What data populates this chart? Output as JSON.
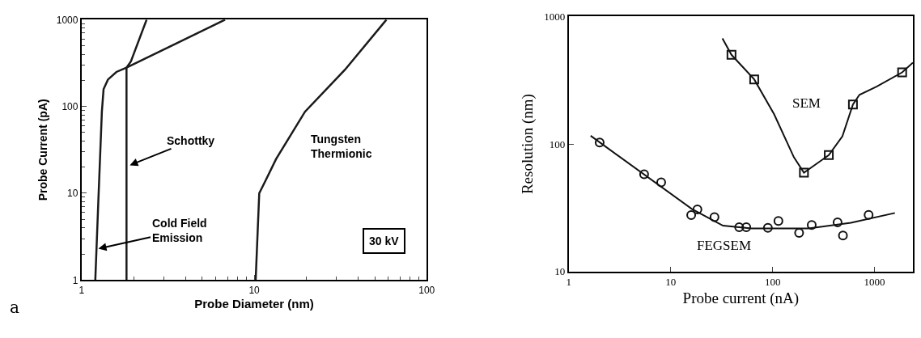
{
  "chart_data": [
    {
      "type": "line",
      "xlabel": "Probe Diameter (nm)",
      "ylabel": "Probe Current (pA)",
      "log": "xy",
      "xlim": [
        1,
        100
      ],
      "ylim": [
        1,
        1000
      ],
      "xticks": [
        1,
        10,
        100
      ],
      "yticks": [
        1,
        10,
        100,
        1000
      ],
      "line_style": "solid",
      "marker": "none",
      "series": [
        {
          "color": "#1a1a1a",
          "x": [
            1.2,
            1.25,
            1.31,
            1.34,
            1.42,
            1.59,
            1.82,
            3.41,
            6.78
          ],
          "values": [
            1,
            8.2,
            87,
            158,
            204,
            250,
            280,
            513,
            1000
          ]
        },
        {
          "color": "#1a1a1a",
          "x": [
            1.82,
            1.82,
            1.93,
            2.38
          ],
          "values": [
            1,
            280,
            330,
            1000
          ]
        },
        {
          "color": "#1a1a1a",
          "x": [
            10.2,
            10.7,
            11.6,
            13.4,
            19.7,
            33.6,
            58.4
          ],
          "values": [
            1,
            10,
            13.8,
            24.8,
            87,
            265,
            1000
          ]
        }
      ],
      "annotations": [
        {
          "text": "Schottky",
          "x": 1.9,
          "y": 21
        },
        {
          "text": "Cold Field\nEmission",
          "x": 1.25,
          "y": 2.3
        },
        "Tungsten\nThermionic",
        "30 kV",
        "a"
      ]
    },
    {
      "type": "scatter",
      "xlabel": "Probe current (nA)",
      "ylabel": "Resolution (nm)",
      "log": "xy",
      "xlim": [
        1,
        2380
      ],
      "ylim": [
        10,
        1000
      ],
      "xticks": [
        1,
        10,
        100,
        1000
      ],
      "yticks": [
        10,
        100,
        1000
      ],
      "series": [
        {
          "type": "line",
          "color": "#111111",
          "x": [
            32.2,
            39.5,
            66,
            103.5,
            162,
            203,
            356,
            484,
            614,
            711,
            1047,
            1866,
            2380
          ],
          "values": [
            673,
            500,
            321,
            171,
            78.6,
            59.6,
            81.8,
            115,
            204,
            243,
            282,
            364,
            434
          ]
        },
        {
          "type": "scatter",
          "marker": "square",
          "color": "#111111",
          "x": [
            39.5,
            66,
            203,
            356,
            614,
            1866
          ],
          "values": [
            500,
            321,
            59.6,
            81.8,
            204,
            364
          ]
        },
        {
          "type": "line",
          "color": "#111111",
          "x": [
            1.64,
            16.1,
            32.6,
            61.9,
            224,
            587,
            1585
          ],
          "values": [
            116,
            31,
            22.9,
            21.8,
            21.8,
            24.1,
            28.8
          ]
        },
        {
          "type": "scatter",
          "marker": "circle",
          "color": "#111111",
          "x": [
            2.01,
            5.49,
            8.07,
            15.9,
            18.3,
            26.9,
            47,
            55.2,
            89.9,
            114,
            182,
            242,
            434,
            490,
            875
          ],
          "values": [
            102.6,
            58,
            50,
            27.7,
            30.7,
            26.7,
            22.3,
            22.3,
            22,
            24.9,
            20.1,
            23.2,
            24.3,
            19.2,
            27.8
          ]
        }
      ],
      "annotations": [
        "SEM",
        "FEGSEM"
      ]
    }
  ]
}
